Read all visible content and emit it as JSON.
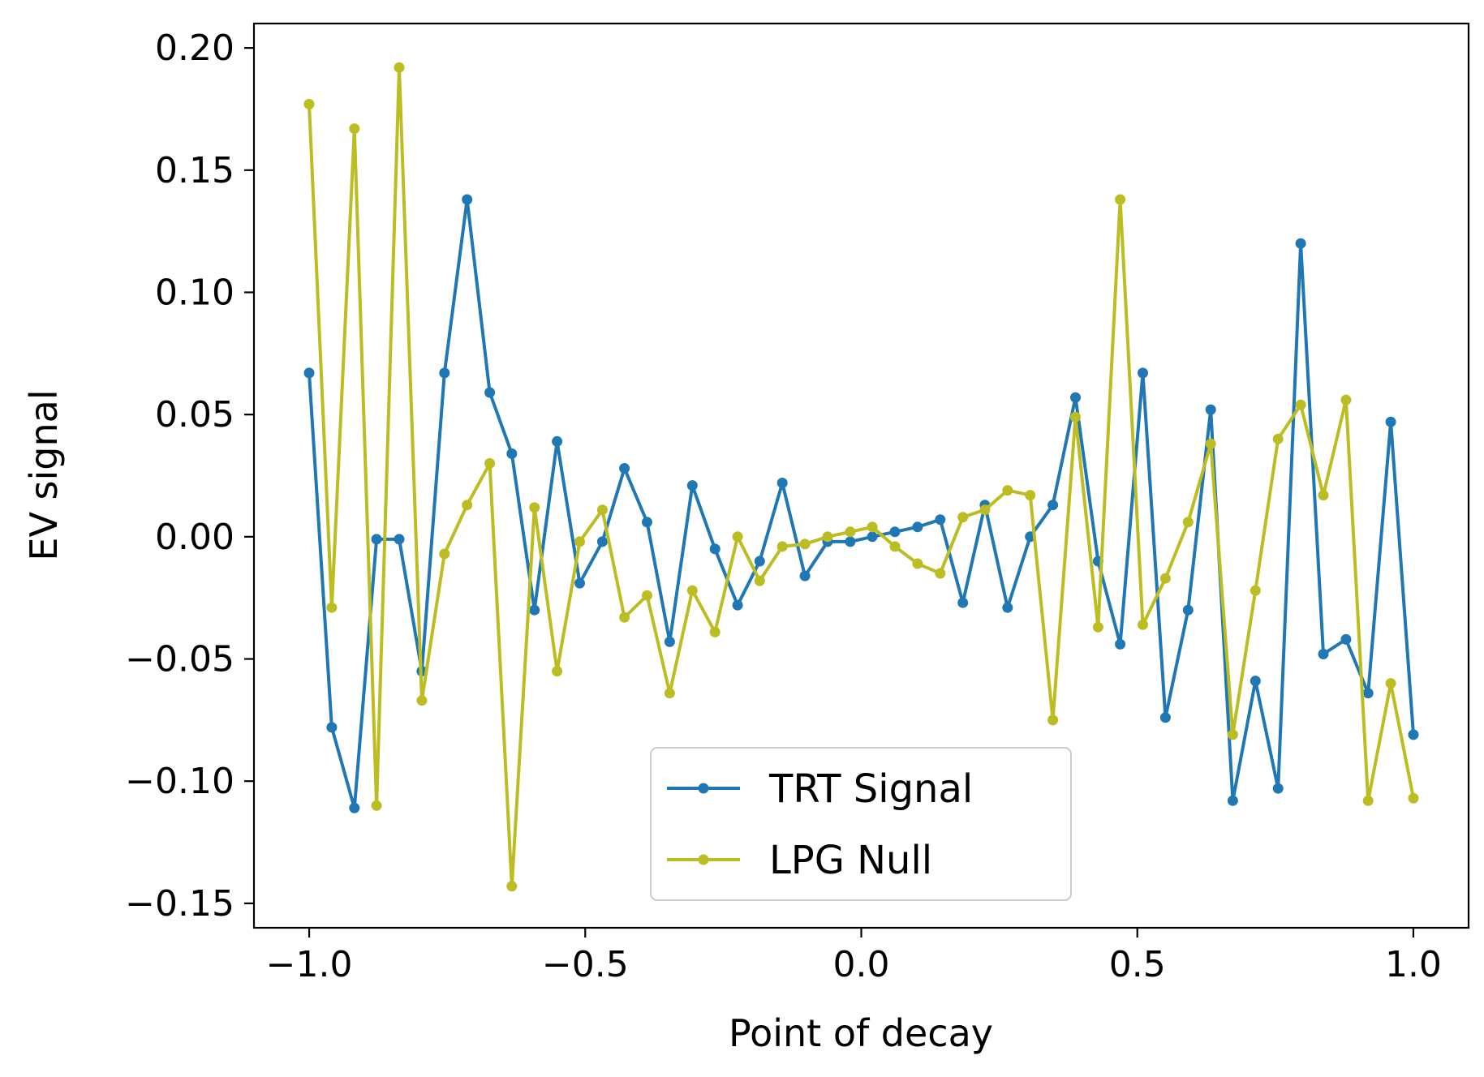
{
  "chart_data": {
    "type": "line",
    "title": "",
    "xlabel": "Point of decay",
    "ylabel": "EV signal",
    "xlim": [
      -1.1,
      1.1
    ],
    "ylim": [
      -0.16,
      0.21
    ],
    "xticks": [
      -1.0,
      -0.5,
      0.0,
      0.5,
      1.0
    ],
    "xtick_labels": [
      "−1.0",
      "−0.5",
      "0.0",
      "0.5",
      "1.0"
    ],
    "yticks": [
      0.2,
      0.15,
      0.1,
      0.05,
      0.0,
      -0.05,
      -0.1,
      -0.15
    ],
    "ytick_labels": [
      "0.20",
      "0.15",
      "0.10",
      "0.05",
      "0.00",
      "−0.05",
      "−0.10",
      "−0.15"
    ],
    "legend_position": "lower center",
    "grid": false,
    "x": [
      -1.0,
      -0.959,
      -0.918,
      -0.878,
      -0.837,
      -0.796,
      -0.755,
      -0.714,
      -0.673,
      -0.633,
      -0.592,
      -0.551,
      -0.51,
      -0.469,
      -0.429,
      -0.388,
      -0.347,
      -0.306,
      -0.265,
      -0.224,
      -0.184,
      -0.143,
      -0.102,
      -0.061,
      -0.02,
      0.02,
      0.061,
      0.102,
      0.143,
      0.184,
      0.224,
      0.265,
      0.306,
      0.347,
      0.388,
      0.429,
      0.469,
      0.51,
      0.551,
      0.592,
      0.633,
      0.673,
      0.714,
      0.755,
      0.796,
      0.837,
      0.878,
      0.918,
      0.959,
      1.0
    ],
    "series": [
      {
        "name": "TRT Signal",
        "color": "#1f77b4",
        "values": [
          0.067,
          -0.078,
          -0.111,
          -0.001,
          -0.001,
          -0.055,
          0.067,
          0.138,
          0.059,
          0.034,
          -0.03,
          0.039,
          -0.019,
          -0.002,
          0.028,
          0.006,
          -0.043,
          0.021,
          -0.005,
          -0.028,
          -0.01,
          0.022,
          -0.016,
          -0.002,
          -0.002,
          0.0,
          0.002,
          0.004,
          0.007,
          -0.027,
          0.013,
          -0.029,
          0.0,
          0.013,
          0.057,
          -0.01,
          -0.044,
          0.067,
          -0.074,
          -0.03,
          0.052,
          -0.108,
          -0.059,
          -0.103,
          0.12,
          -0.048,
          -0.042,
          -0.064,
          0.047,
          -0.081
        ]
      },
      {
        "name": "LPG Null",
        "color": "#bcbd22",
        "values": [
          0.177,
          -0.029,
          0.167,
          -0.11,
          0.192,
          -0.067,
          -0.007,
          0.013,
          0.03,
          -0.143,
          0.012,
          -0.055,
          -0.002,
          0.011,
          -0.033,
          -0.024,
          -0.064,
          -0.022,
          -0.039,
          0.0,
          -0.018,
          -0.004,
          -0.003,
          0.0,
          0.002,
          0.004,
          -0.004,
          -0.011,
          -0.015,
          0.008,
          0.011,
          0.019,
          0.017,
          -0.075,
          0.049,
          -0.037,
          0.138,
          -0.036,
          -0.017,
          0.006,
          0.038,
          -0.081,
          -0.022,
          0.04,
          0.054,
          0.017,
          0.056,
          -0.108,
          -0.06,
          -0.107
        ]
      }
    ]
  }
}
